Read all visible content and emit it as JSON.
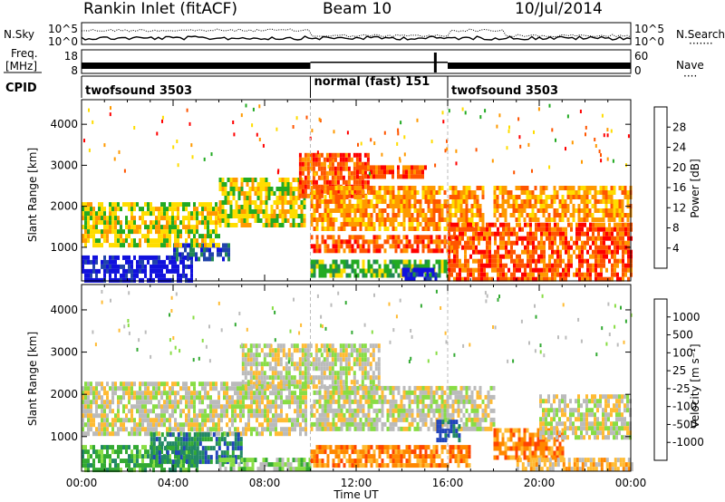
{
  "header": {
    "station": "Rankin Inlet (fitACF)",
    "beam": "Beam 10",
    "date": "10/Jul/2014"
  },
  "noise_panel": {
    "left_label": "N.Sky",
    "right_label": "N.Search",
    "left_ticks": [
      "10^5",
      "10^0"
    ],
    "right_ticks": [
      "10^5",
      "10^0"
    ]
  },
  "freq_panel": {
    "label_line1": "Freq.",
    "label_line2": "[MHz]",
    "left_ticks": [
      "18",
      "8"
    ],
    "right_ticks": [
      "60",
      "0"
    ],
    "right_label": "Nave"
  },
  "cpid_panel": {
    "label": "CPID",
    "segments": [
      {
        "name": "twofsound 3503",
        "start_hour": 0,
        "end_hour": 10
      },
      {
        "name": "normal (fast) 151",
        "start_hour": 10,
        "end_hour": 16
      },
      {
        "name": "twofsound 3503",
        "start_hour": 16,
        "end_hour": 24
      }
    ]
  },
  "chart_data": [
    {
      "type": "heatmap",
      "ylabel": "Slant Range [km]",
      "xlim": [
        0,
        24
      ],
      "ylim": [
        180,
        4600
      ],
      "yticks": [
        "1000",
        "2000",
        "3000",
        "4000"
      ],
      "colorbar": {
        "label": "Power [dB]",
        "ticks": [
          "28",
          "24",
          "20",
          "16",
          "12",
          "8",
          "4"
        ],
        "colors": [
          "#ff0000",
          "#ff5500",
          "#ff9900",
          "#ffdd00",
          "#22aa22",
          "#228855",
          "#2244aa",
          "#1111dd"
        ]
      },
      "regions": [
        {
          "t0": 0.0,
          "t1": 4.8,
          "r0": 200,
          "r1": 800,
          "level": 7
        },
        {
          "t0": 4.0,
          "t1": 6.5,
          "r0": 700,
          "r1": 1100,
          "level": 6
        },
        {
          "t0": 0.0,
          "t1": 6.0,
          "r0": 1100,
          "r1": 2100,
          "level": 3
        },
        {
          "t0": 6.0,
          "t1": 9.8,
          "r0": 1500,
          "r1": 2700,
          "level": 3
        },
        {
          "t0": 9.5,
          "t1": 12.5,
          "r0": 2200,
          "r1": 3300,
          "level": 1
        },
        {
          "t0": 12.0,
          "t1": 15.0,
          "r0": 2700,
          "r1": 3000,
          "level": 1
        },
        {
          "t0": 10.0,
          "t1": 17.5,
          "r0": 1500,
          "r1": 2500,
          "level": 2
        },
        {
          "t0": 10.0,
          "t1": 16.5,
          "r0": 900,
          "r1": 1300,
          "level": 1
        },
        {
          "t0": 10.0,
          "t1": 16.0,
          "r0": 300,
          "r1": 700,
          "level": 4
        },
        {
          "t0": 14.0,
          "t1": 15.5,
          "r0": 200,
          "r1": 500,
          "level": 7
        },
        {
          "t0": 16.0,
          "t1": 24.0,
          "r0": 200,
          "r1": 1600,
          "level": 1
        },
        {
          "t0": 18.0,
          "t1": 24.0,
          "r0": 1700,
          "r1": 2500,
          "level": 2
        }
      ]
    },
    {
      "type": "heatmap",
      "ylabel": "Slant Range [km]",
      "xlabel": "Time UT",
      "xlim": [
        0,
        24
      ],
      "ylim": [
        180,
        4600
      ],
      "xticks": [
        "00:00",
        "04:00",
        "08:00",
        "12:00",
        "16:00",
        "20:00",
        "00:00"
      ],
      "yticks": [
        "1000",
        "2000",
        "3000",
        "4000"
      ],
      "colorbar": {
        "label": "Velocity [m s⁻¹]",
        "ticks": [
          "1000",
          "500",
          "100",
          "25",
          "-25",
          "-100",
          "-500",
          "-1000"
        ],
        "colors": [
          "#2244bb",
          "#228866",
          "#33aa33",
          "#88dd44",
          "#bbbbbb",
          "#ffbb33",
          "#ff8800",
          "#ff4400",
          "#ff0000"
        ]
      },
      "regions": [
        {
          "t0": 0.0,
          "t1": 9.8,
          "r0": 1100,
          "r1": 2300,
          "level": 4
        },
        {
          "t0": 7.0,
          "t1": 13.0,
          "r0": 2200,
          "r1": 3200,
          "level": 4
        },
        {
          "t0": 10.0,
          "t1": 18.0,
          "r0": 1200,
          "r1": 2200,
          "level": 4
        },
        {
          "t0": 0.0,
          "t1": 5.0,
          "r0": 250,
          "r1": 800,
          "level": 2
        },
        {
          "t0": 3.0,
          "t1": 7.0,
          "r0": 400,
          "r1": 1100,
          "level": 1
        },
        {
          "t0": 6.0,
          "t1": 10.0,
          "r0": 200,
          "r1": 500,
          "level": 3
        },
        {
          "t0": 10.0,
          "t1": 17.0,
          "r0": 300,
          "r1": 800,
          "level": 6
        },
        {
          "t0": 15.5,
          "t1": 16.5,
          "r0": 900,
          "r1": 1400,
          "level": 0
        },
        {
          "t0": 18.0,
          "t1": 21.0,
          "r0": 500,
          "r1": 1200,
          "level": 6
        },
        {
          "t0": 19.0,
          "t1": 24.0,
          "r0": 200,
          "r1": 500,
          "level": 5
        },
        {
          "t0": 20.0,
          "t1": 24.0,
          "r0": 1000,
          "r1": 2000,
          "level": 4
        }
      ]
    }
  ]
}
